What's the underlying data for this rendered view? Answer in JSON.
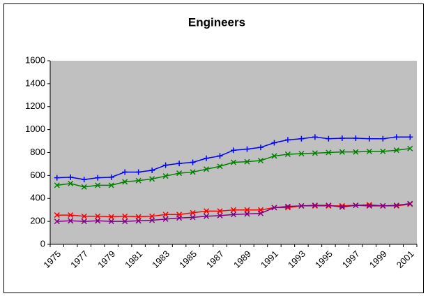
{
  "chart_data": {
    "type": "line",
    "title": "Engineers",
    "categories": [
      "1975",
      null,
      "1977",
      null,
      "1979",
      null,
      "1981",
      null,
      "1983",
      null,
      "1985",
      null,
      "1987",
      null,
      "1989",
      null,
      "1991",
      null,
      "1993",
      null,
      "1995",
      null,
      "1997",
      null,
      "1999",
      null,
      "2001"
    ],
    "series": [
      {
        "color": "#0000ff",
        "marker": "plus",
        "values": [
          580,
          585,
          565,
          580,
          585,
          630,
          630,
          645,
          690,
          705,
          715,
          750,
          770,
          820,
          830,
          845,
          885,
          910,
          920,
          935,
          920,
          925,
          925,
          920,
          920,
          935,
          935
        ]
      },
      {
        "color": "#008000",
        "marker": "cross",
        "values": [
          515,
          530,
          500,
          515,
          515,
          545,
          555,
          570,
          595,
          620,
          630,
          655,
          680,
          715,
          720,
          730,
          770,
          785,
          790,
          795,
          800,
          805,
          805,
          810,
          810,
          820,
          835
        ]
      },
      {
        "color": "#ff0000",
        "marker": "cross",
        "values": [
          255,
          255,
          245,
          245,
          240,
          245,
          240,
          245,
          260,
          260,
          275,
          290,
          290,
          300,
          300,
          300,
          320,
          320,
          335,
          335,
          335,
          335,
          340,
          345,
          335,
          335,
          350
        ]
      },
      {
        "color": "#800080",
        "marker": "cross",
        "values": [
          200,
          205,
          200,
          205,
          200,
          200,
          205,
          210,
          220,
          230,
          235,
          245,
          250,
          260,
          265,
          270,
          320,
          330,
          335,
          340,
          340,
          325,
          340,
          335,
          335,
          340,
          355
        ]
      }
    ],
    "ylim": [
      0,
      1600
    ],
    "yticks": [
      0,
      200,
      400,
      600,
      800,
      1000,
      1200,
      1400,
      1600
    ],
    "grid": false
  }
}
